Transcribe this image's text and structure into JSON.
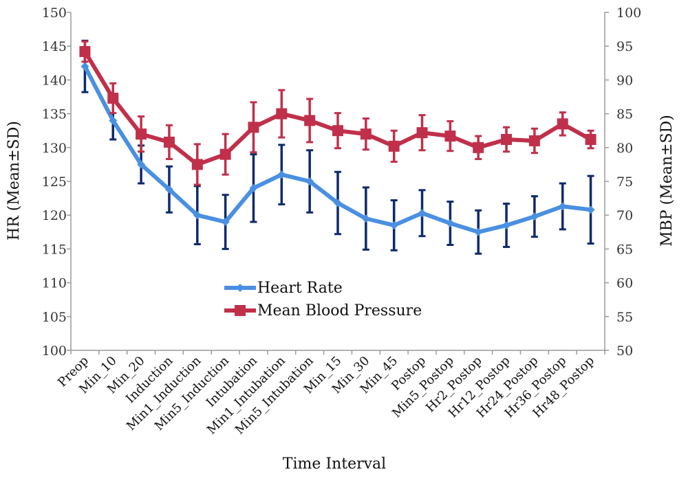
{
  "chart_data": {
    "type": "line",
    "xlabel": "Time Interval",
    "ylabel": "HR  (Mean±SD)",
    "y2label": "MBP  (Mean±SD)",
    "ylim": [
      100,
      150
    ],
    "y2lim": [
      50,
      100
    ],
    "yticks": [
      "100",
      "105",
      "110",
      "115",
      "120",
      "125",
      "130",
      "135",
      "140",
      "145",
      "150"
    ],
    "y2ticks": [
      "50",
      "55",
      "60",
      "65",
      "70",
      "75",
      "80",
      "85",
      "90",
      "95",
      "100"
    ],
    "categories": [
      "Preop",
      "Min_10",
      "Min_20",
      "Induction",
      "Min1_Induction",
      "Min5_Induction",
      "Intubation",
      "Min1_Intubation",
      "Min5_Intubation",
      "Min_15",
      "Min_30",
      "Min_45",
      "Postop",
      "Min5_Postop",
      "Hr2_Postop",
      "Hr12_Postop",
      "Hr24_Postop",
      "Hr36_Postop",
      "Hr48_Postop"
    ],
    "grid": false,
    "legend_position": "center",
    "series": [
      {
        "name": "Heart Rate",
        "axis": "left",
        "color": "#4A90E2",
        "error_color": "#0D2A6B",
        "marker": "diamond",
        "values": [
          142,
          134,
          127.5,
          123.8,
          120,
          119,
          124,
          126,
          125,
          121.8,
          119.5,
          118.5,
          120.3,
          118.8,
          117.5,
          118.5,
          119.8,
          121.3,
          120.8
        ],
        "errors": [
          3.8,
          2.8,
          2.8,
          3.4,
          4.3,
          4.0,
          5.0,
          4.4,
          4.6,
          4.6,
          4.6,
          3.7,
          3.4,
          3.2,
          3.2,
          3.2,
          3.0,
          3.4,
          5.0
        ]
      },
      {
        "name": "Mean Blood Pressure",
        "axis": "right",
        "color": "#C0304A",
        "error_color": "#C0304A",
        "marker": "square",
        "values": [
          94.2,
          87.3,
          82,
          80.8,
          77.5,
          79,
          83,
          85,
          84,
          82.5,
          82,
          80.2,
          82.2,
          81.7,
          80,
          81.2,
          81,
          83.5,
          81.2
        ],
        "errors": [
          1.5,
          2.2,
          2.6,
          2.5,
          3.0,
          3.0,
          3.7,
          3.5,
          3.2,
          2.6,
          2.3,
          2.3,
          2.6,
          2.2,
          1.7,
          1.8,
          1.8,
          1.7,
          1.3
        ]
      }
    ]
  }
}
